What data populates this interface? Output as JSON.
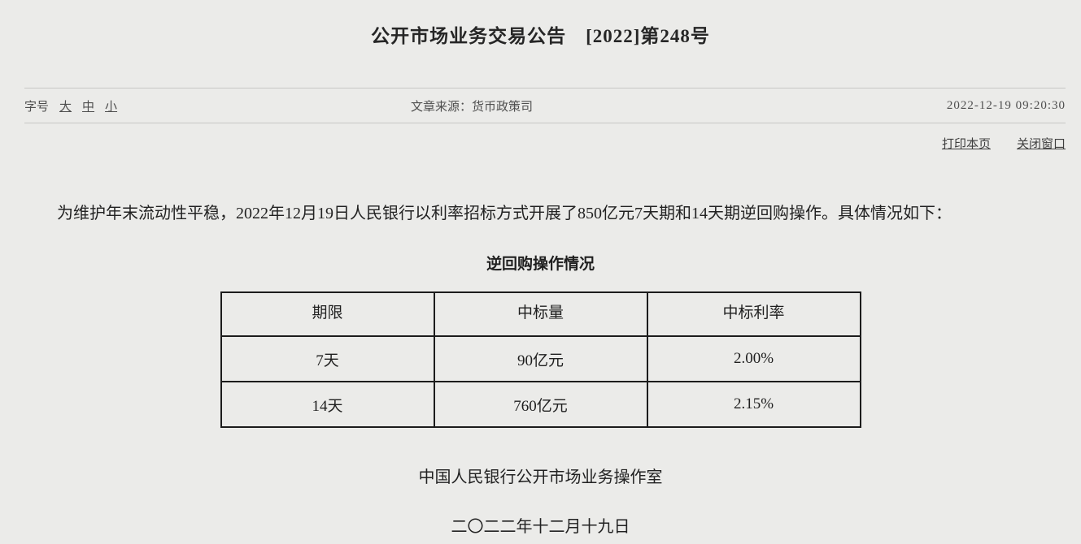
{
  "colors": {
    "page_background": "#ebebe9",
    "divider": "#c8c8c6",
    "table_border": "#1c1c1c",
    "text": "#222222",
    "meta_text": "#4f4f4f"
  },
  "header": {
    "title": "公开市场业务交易公告　[2022]第248号"
  },
  "meta": {
    "font_size_label": "字号",
    "font_size_options": [
      "大",
      "中",
      "小"
    ],
    "source_label": "文章来源：",
    "source_value": "货币政策司",
    "timestamp": "2022-12-19 09:20:30"
  },
  "toolbar": {
    "print_label": "打印本页",
    "close_label": "关闭窗口"
  },
  "article": {
    "paragraph": "为维护年末流动性平稳，2022年12月19日人民银行以利率招标方式开展了850亿元7天期和14天期逆回购操作。具体情况如下：",
    "table_title": "逆回购操作情况",
    "table": {
      "headers": [
        "期限",
        "中标量",
        "中标利率"
      ],
      "rows": [
        [
          "7天",
          "90亿元",
          "2.00%"
        ],
        [
          "14天",
          "760亿元",
          "2.15%"
        ]
      ]
    },
    "signature": "中国人民银行公开市场业务操作室",
    "date": "二〇二二年十二月十九日"
  }
}
